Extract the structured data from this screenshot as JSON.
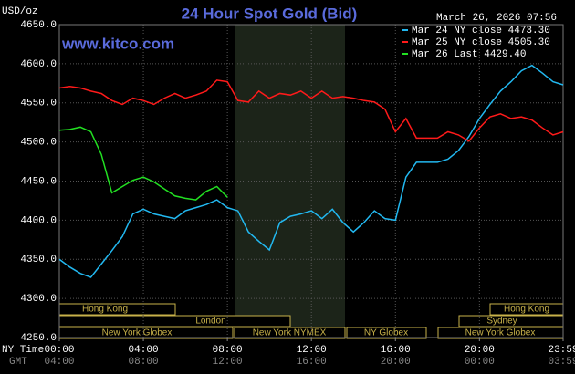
{
  "header": {
    "unit": "USD/oz",
    "timestamp": "March 26, 2026 07:56",
    "watermark": "www.kitco.com"
  },
  "chart_data": {
    "type": "line",
    "title": "24 Hour Spot Gold (Bid)",
    "x": [
      0,
      0.5,
      1,
      1.5,
      2,
      2.5,
      3,
      3.5,
      4,
      4.5,
      5,
      5.5,
      6,
      6.5,
      7,
      7.5,
      8,
      8.5,
      9,
      9.5,
      10,
      10.5,
      11,
      11.5,
      12,
      12.5,
      13,
      13.5,
      14,
      14.5,
      15,
      15.5,
      16,
      16.5,
      17,
      17.5,
      18,
      18.5,
      19,
      19.5,
      20,
      20.5,
      21,
      21.5,
      22,
      22.5,
      23,
      23.5,
      23.983
    ],
    "series": [
      {
        "name": "Mar 24 NY close 4473.30",
        "color": "#22b8f0",
        "values": [
          4350,
          4340,
          4332,
          4327,
          4344,
          4361,
          4379,
          4408,
          4414,
          4408,
          4405,
          4402,
          4412,
          4416,
          4420,
          4426,
          4416,
          4412,
          4385,
          4373,
          4362,
          4397,
          4405,
          4408,
          4412,
          4402,
          4414,
          4397,
          4385,
          4397,
          4412,
          4402,
          4400,
          4455,
          4474,
          4474,
          4474,
          4478,
          4489,
          4507,
          4530,
          4548,
          4565,
          4577,
          4591,
          4598,
          4588,
          4577,
          4573
        ]
      },
      {
        "name": "Mar 25 NY close 4505.30",
        "color": "#ff1a1a",
        "values": [
          4569,
          4571,
          4569,
          4565,
          4562,
          4553,
          4548,
          4556,
          4553,
          4548,
          4556,
          4562,
          4556,
          4560,
          4565,
          4579,
          4577,
          4553,
          4551,
          4565,
          4556,
          4562,
          4560,
          4565,
          4556,
          4565,
          4556,
          4558,
          4556,
          4553,
          4551,
          4542,
          4513,
          4530,
          4505,
          4505,
          4505,
          4513,
          4509,
          4501,
          4518,
          4532,
          4536,
          4530,
          4532,
          4528,
          4518,
          4509,
          4513
        ]
      },
      {
        "name": "Mar 26 Last 4429.40",
        "color": "#22e022",
        "values": [
          4515,
          4516,
          4519,
          4513,
          4484,
          4435,
          4443,
          4451,
          4455,
          4449,
          4440,
          4431,
          4428,
          4426,
          4437,
          4443,
          4429.4,
          null,
          null,
          null,
          null,
          null,
          null,
          null,
          null,
          null,
          null,
          null,
          null,
          null,
          null,
          null,
          null,
          null,
          null,
          null,
          null,
          null,
          null,
          null,
          null,
          null,
          null,
          null,
          null,
          null,
          null,
          null,
          null
        ]
      }
    ],
    "ylim": [
      4250,
      4650
    ],
    "yticks": [
      {
        "value": 4250,
        "label": "4250.0"
      },
      {
        "value": 4300,
        "label": "4300.0"
      },
      {
        "value": 4350,
        "label": "4350.0"
      },
      {
        "value": 4400,
        "label": "4400.0"
      },
      {
        "value": 4450,
        "label": "4450.0"
      },
      {
        "value": 4500,
        "label": "4500.0"
      },
      {
        "value": 4550,
        "label": "4550.0"
      },
      {
        "value": 4600,
        "label": "4600.0"
      },
      {
        "value": 4650,
        "label": "4650.0"
      }
    ],
    "xlim": [
      0,
      23.983
    ],
    "xticks": [
      {
        "value": 0,
        "label": "00:00"
      },
      {
        "value": 4,
        "label": "04:00"
      },
      {
        "value": 8,
        "label": "08:00"
      },
      {
        "value": 12,
        "label": "12:00"
      },
      {
        "value": 16,
        "label": "16:00"
      },
      {
        "value": 20,
        "label": "20:00"
      },
      {
        "value": 23.983,
        "label": "23:59"
      }
    ],
    "gmt_ticks": [
      "04:00",
      "08:00",
      "12:00",
      "16:00",
      "20:00",
      "00:00",
      "03:59"
    ],
    "x_label": "NY Time",
    "gmt_label": "GMT",
    "grid": true
  },
  "sessions": {
    "hong_kong_1": "Hong Kong",
    "london": "London",
    "ny_globex_1": "New York Globex",
    "ny_nymex": "New York NYMEX",
    "ny_globex_2": "NY Globex",
    "hong_kong_2": "Hong Kong",
    "sydney": "Sydney",
    "ny_globex_3": "New York Globex"
  }
}
